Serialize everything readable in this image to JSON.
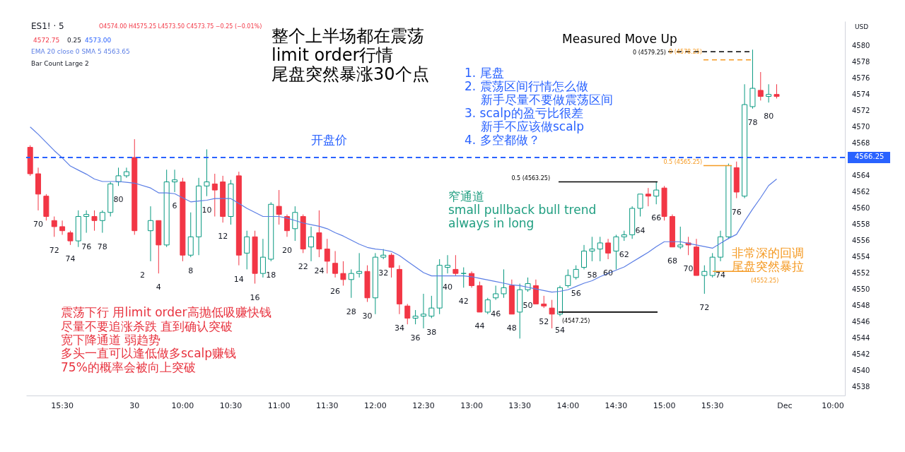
{
  "chart_data": {
    "type": "candlestick",
    "ylabel": "USD",
    "legend": "top left",
    "categories": [
      null,
      null,
      null,
      null,
      "15:30",
      null,
      null,
      null,
      null,
      null,
      null,
      null,
      null,
      "30",
      null,
      null,
      null,
      null,
      null,
      "10:00",
      null,
      null,
      null,
      null,
      null,
      "10:30",
      null,
      null,
      null,
      null,
      null,
      "11:00",
      null,
      null,
      null,
      null,
      null,
      "11:30",
      null,
      null,
      null,
      null,
      null,
      "12:00",
      null,
      null,
      null,
      null,
      null,
      "12:30",
      null,
      null,
      null,
      null,
      null,
      "13:00",
      null,
      null,
      null,
      null,
      null,
      "13:30",
      null,
      null,
      null,
      null,
      null,
      "14:00",
      null,
      null,
      null,
      null,
      null,
      "14:30",
      null,
      null,
      null,
      null,
      null,
      "15:00",
      null,
      null,
      null,
      null,
      null,
      "15:30",
      null,
      null,
      null,
      null,
      null,
      null,
      null,
      null,
      "Dec",
      null,
      null,
      null,
      null,
      null,
      "10:00",
      null
    ],
    "ohlc": [
      [
        4567.5,
        4567.75,
        4564,
        4564.25
      ],
      [
        4564.25,
        4565,
        4559.75,
        4561.75
      ],
      [
        4561.5,
        4561.75,
        4558.5,
        4559
      ],
      [
        4558.5,
        4559,
        4556.5,
        4557.75
      ],
      [
        4557.75,
        4558.5,
        4556.75,
        4557.25
      ],
      [
        4557,
        4557.25,
        4555.5,
        4556
      ],
      [
        4556,
        4559.75,
        4555.25,
        4559
      ],
      [
        4559,
        4559.75,
        4557,
        4559.25
      ],
      [
        4559,
        4559.75,
        4557.25,
        4558.5
      ],
      [
        4558.5,
        4559.75,
        4557,
        4559.5
      ],
      [
        4559.5,
        4563.25,
        4559,
        4563
      ],
      [
        4563.25,
        4565,
        4562.75,
        4564
      ],
      [
        4564,
        4565,
        4563.75,
        4564.5
      ],
      [
        4566.25,
        4568.5,
        4556.75,
        4557.25
      ],
      null,
      [
        4557.25,
        4560.25,
        4553.5,
        4558.5
      ],
      [
        4558.5,
        4558.5,
        4552,
        4555.5
      ],
      [
        4555.5,
        4564.75,
        4555.25,
        4563.25
      ],
      [
        4563.25,
        4564.75,
        4562,
        4563.5
      ],
      [
        4563.25,
        4563.75,
        4553.5,
        4554.25
      ],
      [
        4554.25,
        4559.5,
        4554,
        4556.5
      ],
      [
        4556.5,
        4563.75,
        4554.25,
        4562.75
      ],
      [
        4562.75,
        4567.25,
        4561.5,
        4563.25
      ],
      [
        4563,
        4564.25,
        4559,
        4562.25
      ],
      [
        4563.25,
        4564,
        4558.25,
        4559
      ],
      [
        4559,
        4563.5,
        4558,
        4563
      ],
      [
        4564,
        4564.5,
        4553,
        4554.25
      ],
      [
        4554.5,
        4557.25,
        4552.5,
        4556.5
      ],
      [
        4556.5,
        4557.25,
        4550.75,
        4552
      ],
      [
        4552,
        4556.25,
        4551.5,
        4554
      ],
      [
        4553.75,
        4560.75,
        4553.5,
        4560.5
      ],
      [
        4560.25,
        4562.25,
        4558,
        4559.25
      ],
      [
        4559,
        4559.25,
        4556.5,
        4557.25
      ],
      [
        4557.5,
        4560.25,
        4556,
        4559.5
      ],
      [
        4559,
        4559.25,
        4554.5,
        4555
      ],
      [
        4555.25,
        4557.75,
        4553.5,
        4556.5
      ],
      [
        4557,
        4559.75,
        4554,
        4555
      ],
      [
        4555,
        4556.25,
        4552,
        4553.5
      ],
      [
        4553.25,
        4554.75,
        4551.5,
        4552
      ],
      [
        4552,
        4553.5,
        4550.5,
        4551.25
      ],
      [
        4551.25,
        4552.5,
        4549,
        4552
      ],
      [
        4552,
        4554.5,
        4551.5,
        4552.25
      ],
      [
        4552.25,
        4553,
        4548.5,
        4549
      ],
      [
        4549,
        4554.5,
        4547,
        4554
      ],
      [
        4554,
        4555,
        4553.75,
        4554.25
      ],
      [
        4554.25,
        4554.5,
        4551.5,
        4552.75
      ],
      [
        4552.5,
        4553,
        4547,
        4548.25
      ],
      [
        4548,
        4548.25,
        4545.75,
        4546.5
      ],
      [
        4546.5,
        4547.5,
        4545.75,
        4546.75
      ],
      [
        4546.75,
        4549.5,
        4545.25,
        4547
      ],
      [
        4546.75,
        4549.25,
        4546.5,
        4547.75
      ],
      [
        4547.75,
        4553.75,
        4547,
        4553
      ],
      [
        4552.75,
        4554.25,
        4552,
        4553
      ],
      [
        4552.5,
        4554.25,
        4551.75,
        4552
      ],
      [
        4552,
        4552.75,
        4550.25,
        4552
      ],
      [
        4552,
        4552.25,
        4550.25,
        4550.5
      ],
      [
        4550.5,
        4551,
        4547.25,
        4547.25
      ],
      [
        4547.25,
        4549,
        4547,
        4548.75
      ],
      [
        4549,
        4550.5,
        4548.75,
        4549.5
      ],
      [
        4549.5,
        4552.5,
        4549,
        4550.25
      ],
      [
        4550.5,
        4551.25,
        4547,
        4547
      ],
      [
        4547.25,
        4550.75,
        4544,
        4550
      ],
      [
        4550,
        4551.5,
        4549.75,
        4550.75
      ],
      [
        4550.5,
        4551.25,
        4548.25,
        4548.25
      ],
      [
        4548.25,
        4549.25,
        4547.75,
        4548
      ],
      [
        4547.75,
        4548.75,
        4545.25,
        4547
      ],
      [
        4547,
        4550.5,
        4546.75,
        4550.25
      ],
      [
        4550.5,
        4552.5,
        4550.25,
        4551.75
      ],
      [
        4551.5,
        4553,
        4551.25,
        4552.5
      ],
      [
        4552.75,
        4555.5,
        4552.5,
        4554.75
      ],
      [
        4554.75,
        4556.5,
        4553.5,
        4555
      ],
      [
        4555,
        4556.5,
        4553.5,
        4555.75
      ],
      [
        4555.75,
        4556.25,
        4553.75,
        4554.5
      ],
      [
        4554.75,
        4556.75,
        4552.5,
        4556.5
      ],
      [
        4556.5,
        4557.25,
        4556,
        4556.75
      ],
      [
        4556.75,
        4560.25,
        4556.25,
        4560
      ],
      [
        4560,
        4561.75,
        4559,
        4561.75
      ],
      [
        4561.75,
        4562.5,
        4560.25,
        4561.5
      ],
      [
        4561.5,
        4563.25,
        4560.5,
        4562.25
      ],
      [
        4562.5,
        4562.75,
        4558.5,
        4559
      ],
      [
        4559,
        4559.25,
        4555.25,
        4555.25
      ],
      [
        4555.25,
        4557.75,
        4555,
        4555.5
      ],
      [
        4555.75,
        4556.5,
        4554.25,
        4555.5
      ],
      [
        4555.25,
        4556.25,
        4551.75,
        4551.75
      ],
      [
        4551.75,
        4553,
        4549.5,
        4552.25
      ],
      [
        4551.75,
        4554.5,
        4551.5,
        4554
      ],
      [
        4554,
        4557.25,
        4553.5,
        4556.5
      ],
      [
        4556.5,
        4565.5,
        4556.25,
        4565.25
      ],
      [
        4565,
        4565.75,
        4561.25,
        4562
      ],
      [
        4561.5,
        4575.25,
        4561.25,
        4572.75
      ],
      [
        4572.5,
        4579.5,
        4572.25,
        4574.75
      ],
      [
        4574.5,
        4576.75,
        4573.25,
        4573.75
      ],
      [
        4573.75,
        4575.25,
        4573,
        4574
      ],
      [
        4574,
        4575.25,
        4573.5,
        4573.75
      ],
      null,
      null,
      null,
      null,
      null,
      null,
      null,
      null
    ],
    "value_labels": [
      null,
      "70",
      null,
      "72",
      null,
      "74",
      null,
      "76",
      null,
      "78",
      null,
      "80",
      null,
      null,
      "2",
      null,
      "4",
      null,
      "6",
      null,
      "8",
      null,
      "10",
      null,
      "12",
      null,
      "14",
      null,
      "16",
      null,
      "18",
      null,
      "20",
      null,
      "22",
      null,
      "24",
      null,
      "26",
      null,
      "28",
      null,
      "30",
      null,
      "32",
      null,
      "34",
      null,
      "36",
      null,
      "38",
      null,
      "40",
      null,
      "42",
      null,
      "44",
      null,
      "46",
      null,
      "48",
      null,
      "50",
      null,
      "52",
      null,
      "54",
      null,
      "56",
      null,
      "58",
      null,
      "60",
      null,
      "62",
      null,
      "64",
      null,
      "66",
      null,
      "68",
      null,
      "70",
      null,
      "72",
      null,
      "74",
      null,
      "76",
      null,
      "78",
      null,
      "80",
      null,
      null,
      null,
      null,
      null,
      null,
      null,
      null,
      null
    ],
    "colors": [
      "#f23645",
      "#f23645",
      "#f23645",
      "#f23645",
      "#f23645",
      "#f23645",
      "#089981",
      "#089981",
      "#f23645",
      "#089981",
      "#089981",
      "#089981",
      "#089981",
      "#f23645",
      null,
      "#089981",
      "#f23645",
      "#089981",
      "#089981",
      "#f23645",
      "#089981",
      "#089981",
      "#089981",
      "#f23645",
      "#f23645",
      "#089981",
      "#f23645",
      "#089981",
      "#f23645",
      "#089981",
      "#089981",
      "#f23645",
      "#f23645",
      "#089981",
      "#f23645",
      "#089981",
      "#f23645",
      "#f23645",
      "#f23645",
      "#f23645",
      "#089981",
      "#089981",
      "#f23645",
      "#089981",
      "#089981",
      "#f23645",
      "#f23645",
      "#f23645",
      "#089981",
      "#089981",
      "#089981",
      "#089981",
      "#089981",
      "#f23645",
      "#089981",
      "#f23645",
      "#f23645",
      "#089981",
      "#089981",
      "#089981",
      "#f23645",
      "#089981",
      "#089981",
      "#f23645",
      "#f23645",
      "#f23645",
      "#089981",
      "#089981",
      "#089981",
      "#089981",
      "#089981",
      "#089981",
      "#f23645",
      "#089981",
      "#089981",
      "#089981",
      "#089981",
      "#f23645",
      "#089981",
      "#f23645",
      "#f23645",
      "#089981",
      "#f23645",
      "#f23645",
      "#089981",
      "#089981",
      "#089981",
      "#089981",
      "#f23645",
      "#089981",
      "#089981",
      "#f23645",
      "#089981",
      "#f23645",
      null,
      null,
      null,
      null,
      null,
      null,
      null,
      null
    ],
    "series": [
      {
        "type": "line",
        "name": "EMA 20 close 0 SMA 5 4563.65",
        "color": "#5b7ee5",
        "values": [
          4570.0,
          4569.1,
          4568.1,
          4567.1,
          4566.2,
          4565.2,
          4564.7,
          4564.2,
          4563.6,
          4563.3,
          4563.3,
          4563.3,
          4563.2,
          4563.1,
          null,
          4562.5,
          4561.9,
          4561.9,
          4561.8,
          4561.3,
          4560.8,
          4560.9,
          4561.0,
          4561.2,
          4561.2,
          4561.2,
          4560.6,
          4560.0,
          4559.5,
          4559.0,
          4559.0,
          4559.0,
          4558.8,
          4558.5,
          4558.2,
          4558.0,
          4557.8,
          4557.5,
          4557.0,
          4556.6,
          4556.1,
          4555.6,
          4555.2,
          4555.0,
          4554.9,
          4554.7,
          4554.2,
          4553.5,
          4552.8,
          4552.1,
          4551.7,
          4551.7,
          4551.7,
          4551.7,
          4551.7,
          4551.6,
          4551.4,
          4551.2,
          4551.0,
          4550.8,
          4550.6,
          4550.5,
          4550.3,
          4550.1,
          4549.9,
          4549.7,
          4549.8,
          4550.0,
          4550.4,
          4550.8,
          4551.1,
          4551.6,
          4552.0,
          4552.4,
          4552.8,
          4553.4,
          4554.0,
          4554.6,
          4555.3,
          4555.9,
          4555.9,
          4555.9,
          4555.7,
          4555.5,
          4555.3,
          4555.1,
          4555.7,
          4556.3,
          4556.8,
          4558.4,
          4559.9,
          4561.3,
          4562.8,
          4563.6,
          null,
          null,
          null,
          null,
          null,
          null,
          null,
          null
        ]
      }
    ],
    "ylim": [
      4537,
      4583
    ],
    "yticks": [
      4538,
      4540,
      4542,
      4544,
      4546,
      4548,
      4550,
      4552,
      4554,
      4556,
      4558,
      4560,
      4562,
      4564,
      4568,
      4570,
      4572,
      4574,
      4576,
      4578,
      4580
    ],
    "ref_lines": [
      {
        "axis": "y",
        "value": 4566.25,
        "label": "开盘价",
        "color": "#2962ff",
        "line_style": "dashed"
      },
      {
        "axis": "y",
        "value": 4579.25,
        "label": "0 (4579.25)",
        "color": "#000000",
        "line_style": "dashed"
      },
      {
        "axis": "y",
        "value": 4563.25,
        "label": "0.5 (4563.25)",
        "color": "#000000",
        "line_style": "solid"
      },
      {
        "axis": "y",
        "value": 4547.25,
        "label": "(4547.25)",
        "color": "#000000",
        "line_style": "solid"
      },
      {
        "axis": "y",
        "value": 4578.25,
        "label": "0 (4578.25)",
        "color": "#f59a23",
        "line_style": "dashed"
      },
      {
        "axis": "y",
        "value": 4565.25,
        "label": "0.5 (4565.25)",
        "color": "#f59a23",
        "line_style": "solid"
      },
      {
        "axis": "y",
        "value": 4552.25,
        "label": "(4552.25)",
        "color": "#f59a23",
        "line_style": "solid"
      }
    ],
    "annotations": [
      "ES1! · 5",
      "O4574.00 H4575.25 L4573.50 C4573.75 −0.25 (−0.01%)",
      "4572.75",
      "0.25",
      "4573.00",
      "Bar Count Large 2",
      "整个上半场都在震荡",
      "limit order行情",
      "尾盘突然暴涨30个点",
      "1. 尾盘",
      "2. 震荡区间行情怎么做",
      "新手尽量不要做震荡区间",
      "3. scalp的盈亏比很差",
      "新手不应该做scalp",
      "4. 多空都做？",
      "Measured Move Up",
      "窄通道",
      "small pullback bull trend",
      "always in long",
      "震荡下行 用limit order高抛低吸赚快钱",
      "尽量不要追涨杀跌  直到确认突破",
      "宽下降通道  弱趋势",
      "多头一直可以逢低做多scalp赚钱",
      "75%的概率会被向上突破",
      "非常深的回调",
      "尾盘突然暴拉",
      "4566.25"
    ]
  }
}
